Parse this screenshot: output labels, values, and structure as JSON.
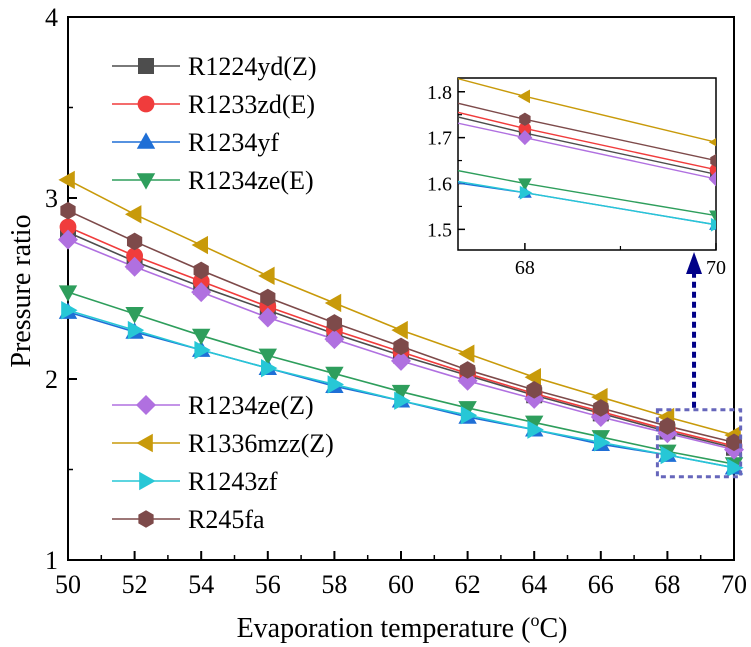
{
  "chart_data": {
    "type": "line",
    "xlabel": "Evaporation temperature (",
    "xlabel_sup": "o",
    "xlabel_unit": "C)",
    "ylabel": "Pressure ratio",
    "xlim": [
      50,
      70
    ],
    "ylim": [
      1,
      4
    ],
    "xticks": [
      50,
      52,
      54,
      56,
      58,
      60,
      62,
      64,
      66,
      68,
      70
    ],
    "yticks": [
      1,
      2,
      3,
      4
    ],
    "grid": false,
    "legend_placement": "top-left and bottom-left",
    "x": [
      50,
      52,
      54,
      56,
      58,
      60,
      62,
      64,
      66,
      68,
      70
    ],
    "series": [
      {
        "name": "R1224yd(Z)",
        "color": "#4d4d4d",
        "marker": "square",
        "values": [
          2.81,
          2.65,
          2.51,
          2.38,
          2.25,
          2.13,
          2.02,
          1.91,
          1.81,
          1.71,
          1.62
        ]
      },
      {
        "name": "R1233zd(E)",
        "color": "#f03c3c",
        "marker": "circle",
        "values": [
          2.84,
          2.68,
          2.54,
          2.4,
          2.27,
          2.15,
          2.03,
          1.92,
          1.82,
          1.72,
          1.63
        ]
      },
      {
        "name": "R1234yf",
        "color": "#1f6fd6",
        "marker": "triangle-up",
        "values": [
          2.37,
          2.26,
          2.16,
          2.06,
          1.96,
          1.88,
          1.79,
          1.72,
          1.64,
          1.58,
          1.51
        ]
      },
      {
        "name": "R1234ze(E)",
        "color": "#2e9e5c",
        "marker": "triangle-down",
        "values": [
          2.48,
          2.36,
          2.24,
          2.13,
          2.03,
          1.93,
          1.84,
          1.76,
          1.68,
          1.6,
          1.53
        ]
      },
      {
        "name": "R1234ze(Z)",
        "color": "#b070e0",
        "marker": "diamond",
        "values": [
          2.77,
          2.62,
          2.48,
          2.34,
          2.22,
          2.1,
          1.99,
          1.89,
          1.79,
          1.7,
          1.61
        ]
      },
      {
        "name": "R1336mzz(Z)",
        "color": "#c89a0a",
        "marker": "triangle-left",
        "values": [
          3.1,
          2.91,
          2.74,
          2.57,
          2.42,
          2.27,
          2.14,
          2.01,
          1.9,
          1.79,
          1.69
        ]
      },
      {
        "name": "R1243zf",
        "color": "#27c7d6",
        "marker": "triangle-right",
        "values": [
          2.38,
          2.27,
          2.16,
          2.06,
          1.97,
          1.88,
          1.8,
          1.72,
          1.65,
          1.58,
          1.51
        ]
      },
      {
        "name": "R245fa",
        "color": "#7d4a4a",
        "marker": "hexagon",
        "values": [
          2.93,
          2.76,
          2.6,
          2.45,
          2.31,
          2.18,
          2.05,
          1.94,
          1.84,
          1.74,
          1.65
        ]
      }
    ],
    "inset": {
      "xlim": [
        67.3,
        70
      ],
      "ylim": [
        1.455,
        1.83
      ],
      "xticks": [
        68,
        70
      ],
      "yticks": [
        1.5,
        1.6,
        1.7,
        1.8
      ],
      "ytick_labels": [
        "1.5",
        "1.6",
        "1.7",
        "1.8"
      ],
      "zoom_box_x": [
        67.7,
        70.2
      ],
      "zoom_box_y": [
        1.46,
        1.83
      ],
      "box_color": "#6666bb",
      "arrow_color": "#000088"
    }
  }
}
